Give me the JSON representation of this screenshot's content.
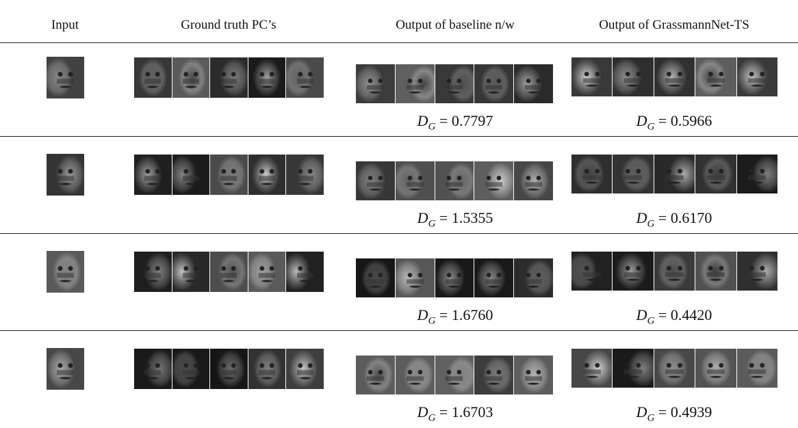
{
  "header": [
    "Input",
    "Ground truth PC’s",
    "Output of baseline n/w",
    "Output of GrassmannNet-TS"
  ],
  "metric": {
    "symbol": "D",
    "subscript": "G",
    "relation": "="
  },
  "rows": [
    {
      "baseline": "0.7797",
      "grassmann": "0.5966"
    },
    {
      "baseline": "1.5355",
      "grassmann": "0.6170"
    },
    {
      "baseline": "1.6760",
      "grassmann": "0.4420"
    },
    {
      "baseline": "1.6703",
      "grassmann": "0.4939"
    }
  ]
}
